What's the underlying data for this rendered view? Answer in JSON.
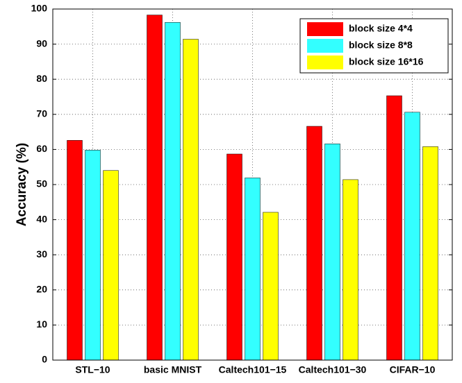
{
  "chart_data": {
    "type": "bar",
    "y_label": "Accuracy (%)",
    "categories": [
      "STL−10",
      "basic MNIST",
      "Caltech101−15",
      "Caltech101−30",
      "CIFAR−10"
    ],
    "series": [
      {
        "name": "block size 4*4",
        "color": "#ff0000",
        "values": [
          62.6,
          98.3,
          58.7,
          66.6,
          75.3
        ]
      },
      {
        "name": "block size 8*8",
        "color": "#33ffff",
        "values": [
          59.8,
          96.2,
          51.9,
          61.6,
          70.6
        ]
      },
      {
        "name": "block size 16*16",
        "color": "#ffff00",
        "values": [
          54.0,
          91.4,
          42.1,
          51.4,
          60.8
        ]
      }
    ],
    "ylim": [
      0,
      100
    ],
    "yticks": [
      0,
      10,
      20,
      30,
      40,
      50,
      60,
      70,
      80,
      90,
      100
    ],
    "grid": true,
    "legend_location": "northeast"
  }
}
